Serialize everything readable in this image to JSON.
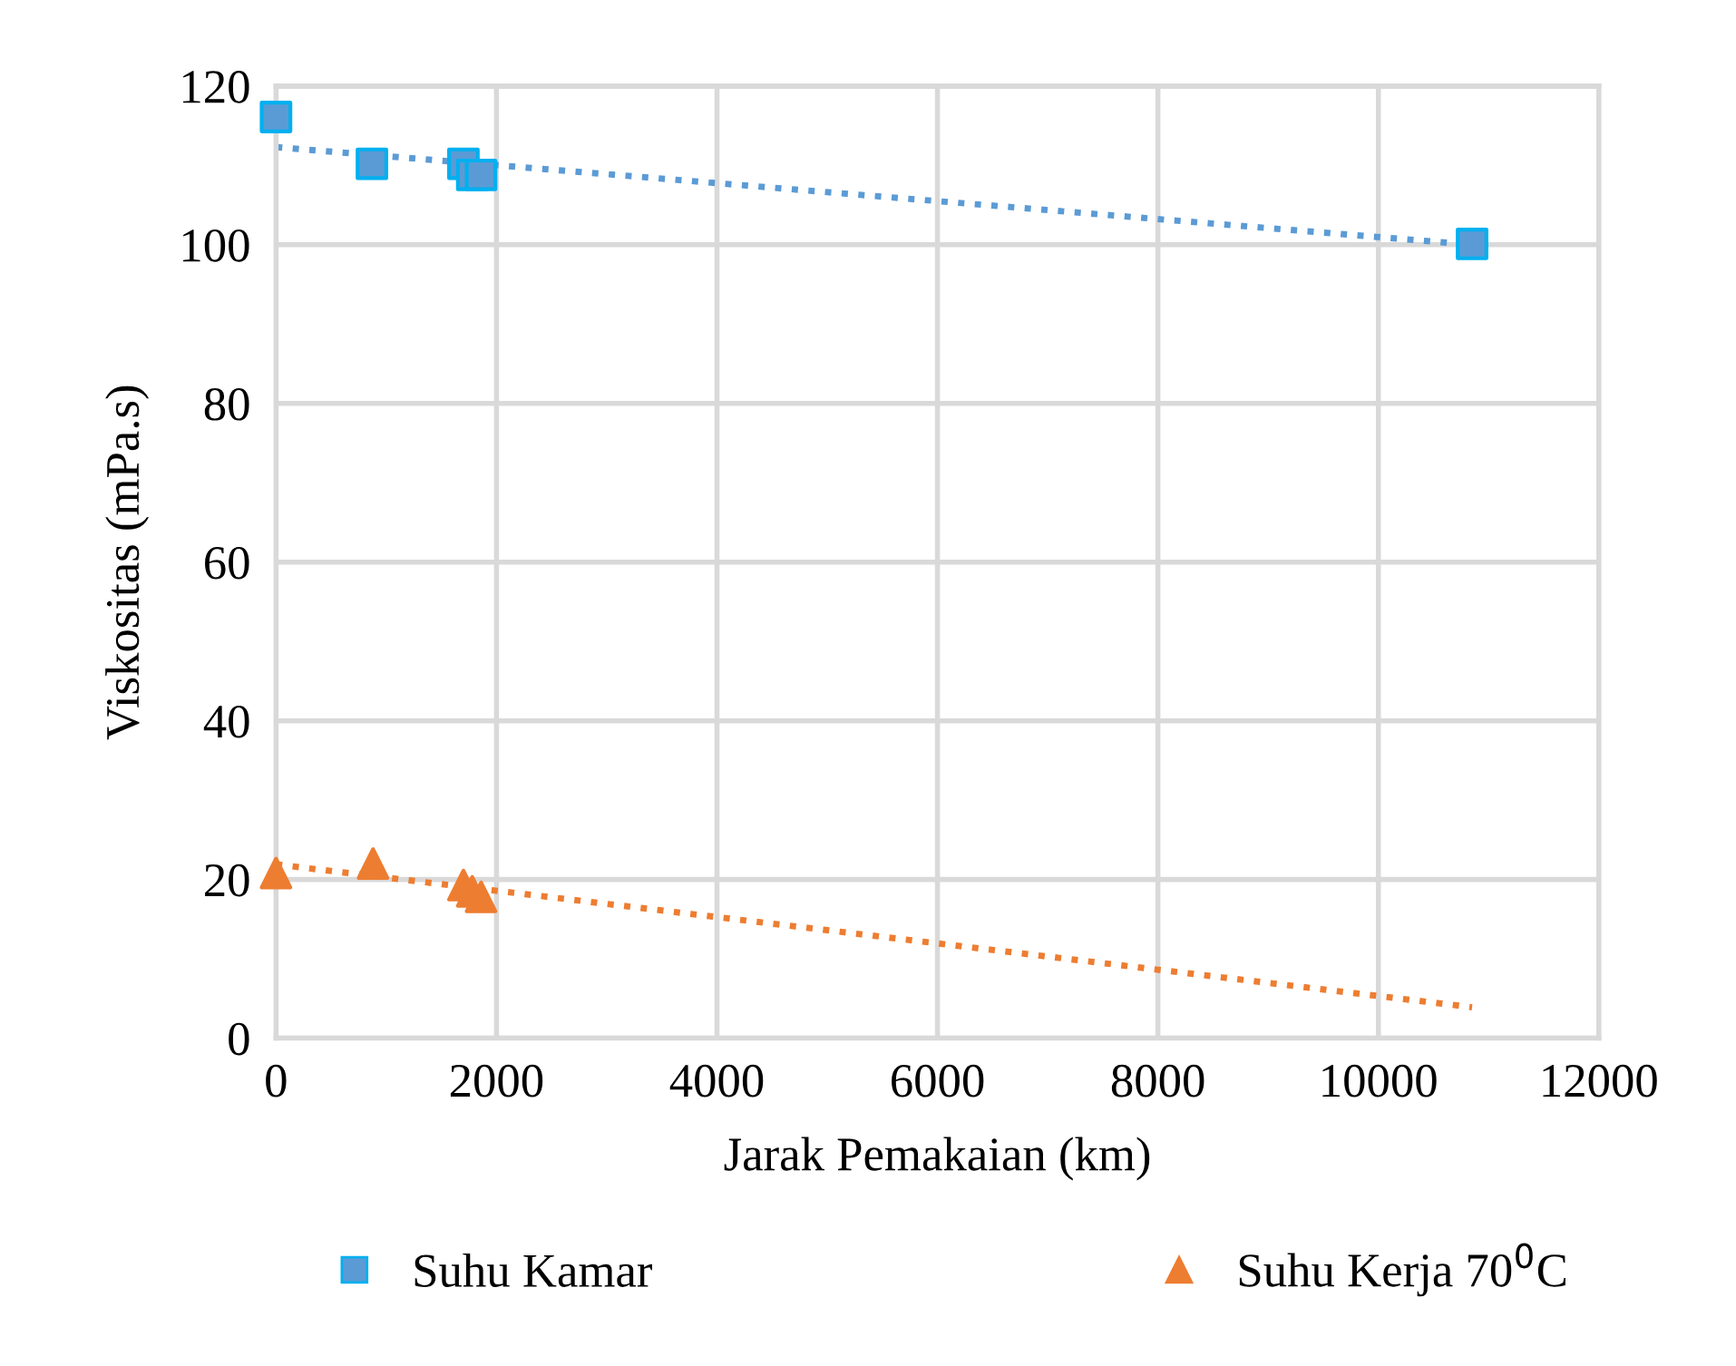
{
  "chart_data": {
    "type": "scatter",
    "xlabel": "Jarak Pemakaian (km)",
    "ylabel": "Viskositas (mPa.s)",
    "xlim": [
      0,
      12000
    ],
    "xticks": [
      0,
      2000,
      4000,
      6000,
      8000,
      10000,
      12000
    ],
    "ylim": [
      0,
      120
    ],
    "yticks": [
      0,
      20,
      40,
      60,
      80,
      100,
      120
    ],
    "grid": true,
    "legend": "bottom",
    "series": [
      {
        "name": "Suhu Kamar",
        "color": "#5b9bd5",
        "marker": "square",
        "x": [
          0,
          870,
          1700,
          1780,
          1860,
          10850
        ],
        "values": [
          116.1,
          110.2,
          110.2,
          108.8,
          108.8,
          100.1
        ]
      },
      {
        "name": "Suhu Kerja 70$^{0}$C",
        "color": "#ed7d31",
        "marker": "triangle",
        "x": [
          0,
          880,
          1700,
          1780,
          1860
        ],
        "values": [
          20.8,
          22.0,
          19.3,
          18.5,
          17.8
        ]
      },
      {
        "type": "line",
        "color": "#5b9bd5",
        "line_style": "dotted",
        "marker": "none",
        "x": [
          0,
          10850
        ],
        "values": [
          112.3,
          100.0
        ]
      },
      {
        "type": "line",
        "color": "#ed7d31",
        "line_style": "dotted",
        "marker": "none",
        "x": [
          0,
          10850
        ],
        "values": [
          21.9,
          3.9
        ]
      }
    ]
  }
}
